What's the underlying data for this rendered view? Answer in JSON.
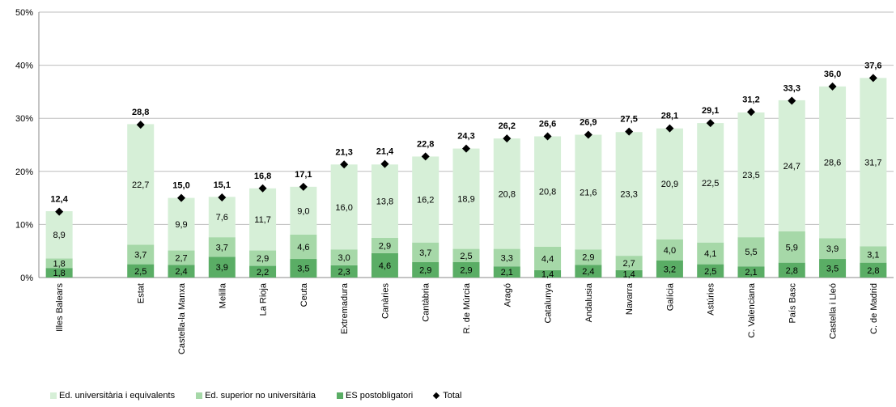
{
  "chart_data": {
    "type": "bar",
    "stacked": true,
    "categories": [
      "Illes Balears",
      "",
      "Estat",
      "Castella-la Manxa",
      "Melilla",
      "La Rioja",
      "Ceuta",
      "Extremadura",
      "Canàries",
      "Cantàbria",
      "R. de Múrcia",
      "Aragó",
      "Catalunya",
      "Andalusia",
      "Navarra",
      "Galícia",
      "Astúries",
      "C. Valenciana",
      "País Basc",
      "Castella i Lleó",
      "C. de Madrid"
    ],
    "series": [
      {
        "name": "ES postobligatori",
        "color": "#5aad65",
        "values": [
          1.8,
          null,
          2.5,
          2.4,
          3.9,
          2.2,
          3.5,
          2.3,
          4.6,
          2.9,
          2.9,
          2.1,
          1.4,
          2.4,
          1.4,
          3.2,
          2.5,
          2.1,
          2.8,
          3.5,
          2.8
        ],
        "labels": [
          "1,8",
          "",
          "2,5",
          "2,4",
          "3,9",
          "2,2",
          "3,5",
          "2,3",
          "4,6",
          "2,9",
          "2,9",
          "2,1",
          "1,4",
          "2,4",
          "1,4",
          "3,2",
          "2,5",
          "2,1",
          "2,8",
          "3,5",
          "2,8"
        ]
      },
      {
        "name": "Ed. superior no universitària",
        "color": "#a6d8a8",
        "values": [
          1.8,
          null,
          3.7,
          2.7,
          3.7,
          2.9,
          4.6,
          3.0,
          2.9,
          3.7,
          2.5,
          3.3,
          4.4,
          2.9,
          2.7,
          4.0,
          4.1,
          5.5,
          5.9,
          3.9,
          3.1
        ],
        "labels": [
          "1,8",
          "",
          "3,7",
          "2,7",
          "3,7",
          "2,9",
          "4,6",
          "3,0",
          "2,9",
          "3,7",
          "2,5",
          "3,3",
          "4,4",
          "2,9",
          "2,7",
          "4,0",
          "4,1",
          "5,5",
          "5,9",
          "3,9",
          "3,1"
        ]
      },
      {
        "name": "Ed. universitària i equivalents",
        "color": "#d6efd7",
        "values": [
          8.9,
          null,
          22.7,
          9.9,
          7.6,
          11.7,
          9.0,
          16.0,
          13.8,
          16.2,
          18.9,
          20.8,
          20.8,
          21.6,
          23.3,
          20.9,
          22.5,
          23.5,
          24.7,
          28.6,
          31.7
        ],
        "labels": [
          "8,9",
          "",
          "22,7",
          "9,9",
          "7,6",
          "11,7",
          "9,0",
          "16,0",
          "13,8",
          "16,2",
          "18,9",
          "20,8",
          "20,8",
          "21,6",
          "23,3",
          "20,9",
          "22,5",
          "23,5",
          "24,7",
          "28,6",
          "31,7"
        ]
      }
    ],
    "total": {
      "name": "Total",
      "values": [
        12.4,
        null,
        28.8,
        15.0,
        15.1,
        16.8,
        17.1,
        21.3,
        21.4,
        22.8,
        24.3,
        26.2,
        26.6,
        26.9,
        27.5,
        28.1,
        29.1,
        31.2,
        33.3,
        36.0,
        37.6
      ],
      "labels": [
        "12,4",
        "",
        "28,8",
        "15,0",
        "15,1",
        "16,8",
        "17,1",
        "21,3",
        "21,4",
        "22,8",
        "24,3",
        "26,2",
        "26,6",
        "26,9",
        "27,5",
        "28,1",
        "29,1",
        "31,2",
        "33,3",
        "36,0",
        "37,6"
      ]
    },
    "ylim": [
      0,
      50
    ],
    "yticks": [
      "0%",
      "10%",
      "20%",
      "30%",
      "40%",
      "50%"
    ],
    "grid": true,
    "legend_position": "bottom"
  },
  "legend": [
    {
      "label": "Ed. universitària i equivalents",
      "color": "#d6efd7",
      "kind": "square"
    },
    {
      "label": "Ed. superior no universitària",
      "color": "#a6d8a8",
      "kind": "square"
    },
    {
      "label": "ES postobligatori",
      "color": "#5aad65",
      "kind": "square"
    },
    {
      "label": "Total",
      "color": "#000000",
      "kind": "diamond"
    }
  ]
}
